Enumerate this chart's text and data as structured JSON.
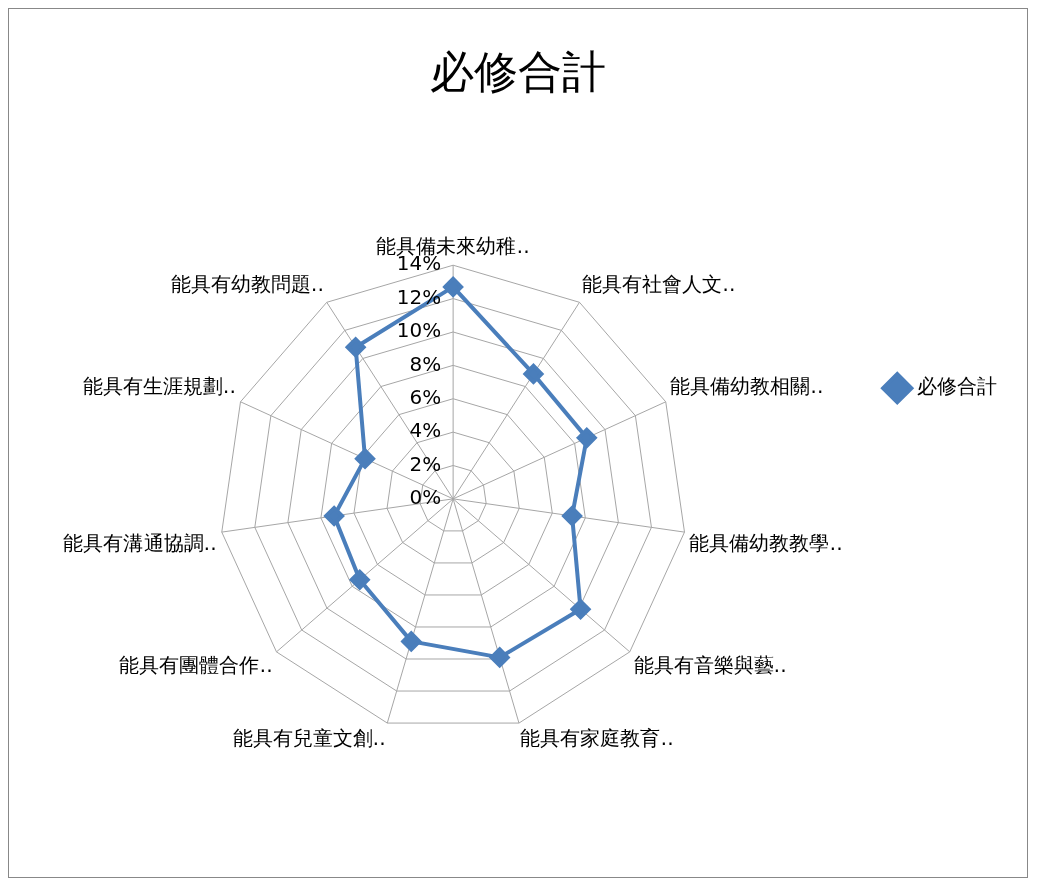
{
  "chart_data": {
    "type": "radar",
    "title": "必修合計",
    "categories": [
      "能具備未來幼稚‥",
      "能具有社會人文‥",
      "能具備幼教相關‥",
      "能具備幼教教學‥",
      "能具有音樂與藝‥",
      "能具有家庭教育‥",
      "能具有兒童文創‥",
      "能具有團體合作‥",
      "能具有溝通協調‥",
      "能具有生涯規劃‥",
      "能具有幼教問題‥"
    ],
    "series": [
      {
        "name": "必修合計",
        "color": "#4a7ebb",
        "values": [
          12.7,
          8.9,
          8.8,
          7.2,
          10.1,
          9.9,
          8.9,
          7.4,
          7.2,
          5.8,
          10.8
        ]
      }
    ],
    "ylim": [
      0,
      14
    ],
    "yticks": [
      {
        "value": 0,
        "label": "0%"
      },
      {
        "value": 2,
        "label": "2%"
      },
      {
        "value": 4,
        "label": "4%"
      },
      {
        "value": 6,
        "label": "6%"
      },
      {
        "value": 8,
        "label": "8%"
      },
      {
        "value": 10,
        "label": "10%"
      },
      {
        "value": 12,
        "label": "12%"
      },
      {
        "value": 14,
        "label": "14%"
      }
    ],
    "grid": true,
    "legend": "right",
    "marker": "diamond",
    "line_style": "solid"
  }
}
